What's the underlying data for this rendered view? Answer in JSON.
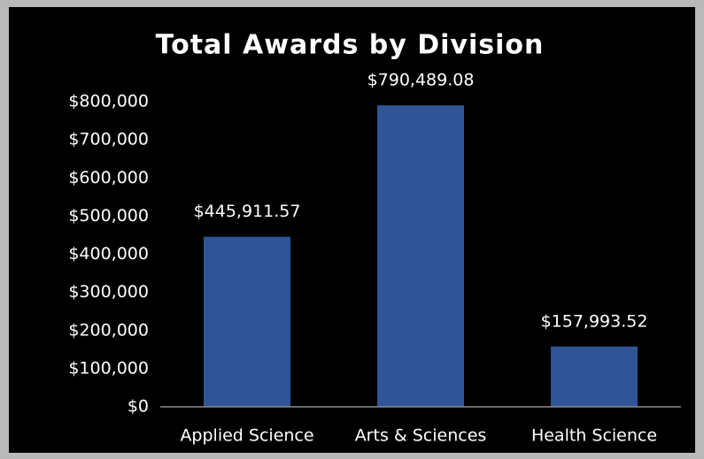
{
  "chart_data": {
    "type": "bar",
    "title": "Total Awards by Division",
    "categories": [
      "Applied Science",
      "Arts & Sciences",
      "Health Science"
    ],
    "values": [
      445911.57,
      790489.08,
      157993.52
    ],
    "value_labels": [
      "$445,911.57",
      "$790,489.08",
      "$157,993.52"
    ],
    "color": "#2f5597",
    "ylim": [
      0,
      800000
    ],
    "yticks": [
      {
        "value": 0,
        "label": "$0"
      },
      {
        "value": 100000,
        "label": "$100,000"
      },
      {
        "value": 200000,
        "label": "$200,000"
      },
      {
        "value": 300000,
        "label": "$300,000"
      },
      {
        "value": 400000,
        "label": "$400,000"
      },
      {
        "value": 500000,
        "label": "$500,000"
      },
      {
        "value": 600000,
        "label": "$600,000"
      },
      {
        "value": 700000,
        "label": "$700,000"
      },
      {
        "value": 800000,
        "label": "$800,000"
      }
    ],
    "grid": false
  }
}
